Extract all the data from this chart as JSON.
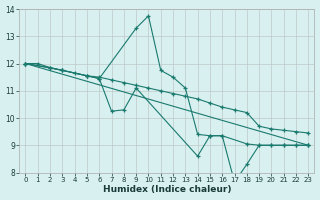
{
  "xlabel": "Humidex (Indice chaleur)",
  "ylabel": "",
  "xlim": [
    -0.5,
    23.5
  ],
  "ylim": [
    8,
    14
  ],
  "yticks": [
    8,
    9,
    10,
    11,
    12,
    13,
    14
  ],
  "xticks": [
    0,
    1,
    2,
    3,
    4,
    5,
    6,
    7,
    8,
    9,
    10,
    11,
    12,
    13,
    14,
    15,
    16,
    17,
    18,
    19,
    20,
    21,
    22,
    23
  ],
  "bg_color": "#d8f0f0",
  "grid_color": "#c0c8c8",
  "line_color": "#1a7a6e",
  "lines": [
    {
      "x": [
        0,
        1,
        2,
        3,
        4,
        5,
        6,
        7,
        8,
        9,
        10,
        11,
        12,
        13,
        14,
        15,
        16,
        17,
        18,
        19,
        20,
        21,
        22,
        23
      ],
      "y": [
        12.0,
        12.0,
        11.85,
        11.75,
        11.65,
        11.55,
        11.5,
        11.4,
        11.3,
        11.2,
        11.1,
        11.0,
        10.9,
        10.8,
        10.7,
        10.55,
        10.4,
        10.3,
        10.2,
        9.7,
        9.6,
        9.55,
        9.5,
        9.45
      ]
    },
    {
      "x": [
        0,
        2,
        3,
        5,
        6,
        9,
        10,
        11,
        12,
        13,
        14,
        15,
        16,
        18,
        19,
        20,
        21,
        22,
        23
      ],
      "y": [
        12.0,
        11.85,
        11.75,
        11.55,
        11.45,
        13.3,
        13.75,
        11.75,
        11.5,
        11.1,
        9.4,
        9.35,
        9.35,
        9.05,
        9.0,
        9.0,
        9.0,
        9.0,
        9.0
      ]
    },
    {
      "x": [
        0,
        3,
        5,
        6,
        7,
        8,
        9,
        14,
        15,
        16,
        17,
        18,
        19,
        20,
        21,
        22,
        23
      ],
      "y": [
        12.0,
        11.75,
        11.55,
        11.45,
        10.25,
        10.3,
        11.1,
        8.6,
        9.35,
        9.35,
        7.65,
        8.3,
        9.0,
        9.0,
        9.0,
        9.0,
        9.0
      ]
    },
    {
      "x": [
        0,
        23
      ],
      "y": [
        12.0,
        9.0
      ]
    }
  ]
}
